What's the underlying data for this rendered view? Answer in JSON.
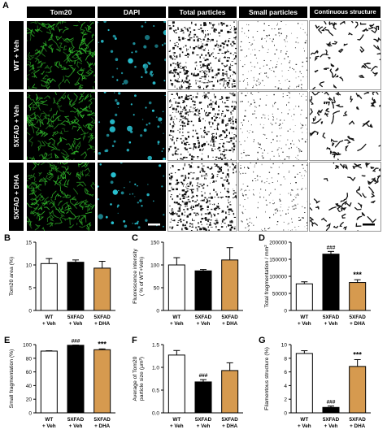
{
  "panel_a": {
    "letter": "A",
    "columns": [
      "Tom20",
      "DAPI",
      "Total particles",
      "Small particles",
      "Continuous structure"
    ],
    "rows": [
      "WT + Veh",
      "5XFAD + Veh",
      "5XFAD + DHA"
    ]
  },
  "colors": {
    "wt": "#ffffff",
    "fad_veh": "#000000",
    "fad_dha": "#d69a4f",
    "tom20": "#2fb52a",
    "dapi": "#29c6d6"
  },
  "chart_data": [
    {
      "id": "B",
      "type": "bar",
      "categories": [
        [
          "WT",
          "+ Veh"
        ],
        [
          "5XFAD",
          "+ Veh"
        ],
        [
          "5XFAD",
          "+ DHA"
        ]
      ],
      "values": [
        10.3,
        10.6,
        9.3
      ],
      "errors": [
        1.1,
        0.5,
        1.5
      ],
      "ylabel": "Tom20 area (%)",
      "ylim": [
        0,
        15
      ],
      "ticks": [
        "0",
        "5",
        "10",
        "15"
      ],
      "tickvals": [
        0,
        5,
        10,
        15
      ],
      "annotations": [
        "",
        "",
        ""
      ]
    },
    {
      "id": "C",
      "type": "bar",
      "categories": [
        [
          "WT",
          "+ Veh"
        ],
        [
          "5XFAD",
          "+ Veh"
        ],
        [
          "5XFAD",
          "+ DHA"
        ]
      ],
      "values": [
        100,
        87,
        111
      ],
      "errors": [
        16,
        3,
        27
      ],
      "ylabel": "Fluorescence intensity\n( % of WT+Veh)",
      "ylim": [
        0,
        150
      ],
      "ticks": [
        "0",
        "50",
        "100",
        "150"
      ],
      "tickvals": [
        0,
        50,
        100,
        150
      ],
      "annotations": [
        "",
        "",
        ""
      ]
    },
    {
      "id": "D",
      "type": "bar",
      "categories": [
        [
          "WT",
          "+ Veh"
        ],
        [
          "5XFAD",
          "+ Veh"
        ],
        [
          "5XFAD",
          "+ DHA"
        ]
      ],
      "values": [
        78000,
        165000,
        82000
      ],
      "errors": [
        6000,
        8000,
        8000
      ],
      "ylabel": "Total fragmentation / mm²",
      "ylim": [
        0,
        200000
      ],
      "ticks": [
        "0",
        "50000",
        "100000",
        "150000",
        "200000"
      ],
      "tickvals": [
        0,
        50000,
        100000,
        150000,
        200000
      ],
      "annotations": [
        "",
        "###",
        "***"
      ]
    },
    {
      "id": "E",
      "type": "bar",
      "categories": [
        [
          "WT",
          "+ Veh"
        ],
        [
          "5XFAD",
          "+ Veh"
        ],
        [
          "5XFAD",
          "+ DHA"
        ]
      ],
      "values": [
        90.5,
        99.0,
        92.5
      ],
      "errors": [
        0.5,
        0.3,
        1.2
      ],
      "ylabel": "Small fragmentation (%)",
      "ylim": [
        0,
        100
      ],
      "ticks": [
        "0",
        "20",
        "40",
        "60",
        "80",
        "100"
      ],
      "tickvals": [
        0,
        20,
        40,
        60,
        80,
        100
      ],
      "annotations": [
        "",
        "###",
        "***"
      ]
    },
    {
      "id": "F",
      "type": "bar",
      "categories": [
        [
          "WT",
          "+ Veh"
        ],
        [
          "5XFAD",
          "+ Veh"
        ],
        [
          "5XFAD",
          "+ DHA"
        ]
      ],
      "values": [
        1.27,
        0.68,
        0.93
      ],
      "errors": [
        0.1,
        0.05,
        0.17
      ],
      "ylabel": "Average of Tom20\nparticle size (μm²)",
      "ylim": [
        0,
        1.5
      ],
      "ticks": [
        "0.0",
        "0.5",
        "1.0",
        "1.5"
      ],
      "tickvals": [
        0,
        0.5,
        1.0,
        1.5
      ],
      "annotations": [
        "",
        "###",
        ""
      ]
    },
    {
      "id": "G",
      "type": "bar",
      "categories": [
        [
          "WT",
          "+ Veh"
        ],
        [
          "5XFAD",
          "+ Veh"
        ],
        [
          "5XFAD",
          "+ DHA"
        ]
      ],
      "values": [
        8.7,
        0.8,
        6.8
      ],
      "errors": [
        0.4,
        0.2,
        1.0
      ],
      "ylabel": "Filamentous structure (%)",
      "ylim": [
        0,
        10
      ],
      "ticks": [
        "0",
        "2",
        "4",
        "6",
        "8",
        "10"
      ],
      "tickvals": [
        0,
        2,
        4,
        6,
        8,
        10
      ],
      "annotations": [
        "",
        "###",
        "***"
      ]
    }
  ]
}
